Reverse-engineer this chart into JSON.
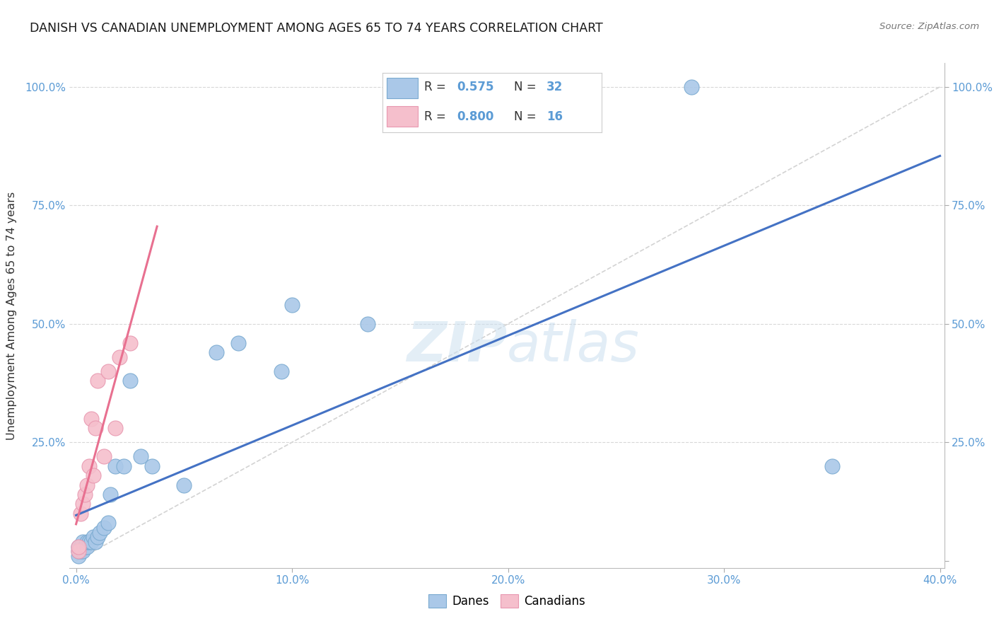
{
  "title": "DANISH VS CANADIAN UNEMPLOYMENT AMONG AGES 65 TO 74 YEARS CORRELATION CHART",
  "source": "Source: ZipAtlas.com",
  "ylabel_label": "Unemployment Among Ages 65 to 74 years",
  "xlim": [
    0.0,
    0.4
  ],
  "ylim": [
    0.0,
    1.05
  ],
  "xticks": [
    0.0,
    0.1,
    0.2,
    0.3,
    0.4
  ],
  "yticks": [
    0.0,
    0.25,
    0.5,
    0.75,
    1.0
  ],
  "xtick_labels": [
    "0.0%",
    "10.0%",
    "20.0%",
    "30.0%",
    "40.0%"
  ],
  "ytick_labels": [
    "",
    "25.0%",
    "50.0%",
    "75.0%",
    "100.0%"
  ],
  "danes_R": "0.575",
  "danes_N": "32",
  "canadians_R": "0.800",
  "canadians_N": "16",
  "danes_fill": "#aac8e8",
  "danes_edge": "#7aaad0",
  "canadians_fill": "#f5bfcc",
  "canadians_edge": "#e898b0",
  "danes_line": "#4472c4",
  "canadians_line": "#e87090",
  "diagonal_color": "#c8c8c8",
  "grid_color": "#d8d8d8",
  "tick_color": "#5b9bd5",
  "watermark": "ZIPatlas",
  "legend_label_danes": "Danes",
  "legend_label_canadians": "Canadians",
  "danes_x": [
    0.001,
    0.001,
    0.001,
    0.002,
    0.002,
    0.003,
    0.003,
    0.004,
    0.005,
    0.005,
    0.006,
    0.007,
    0.008,
    0.009,
    0.01,
    0.011,
    0.013,
    0.015,
    0.016,
    0.018,
    0.022,
    0.025,
    0.03,
    0.035,
    0.05,
    0.065,
    0.075,
    0.095,
    0.1,
    0.135,
    0.285,
    0.35
  ],
  "danes_y": [
    0.01,
    0.02,
    0.03,
    0.02,
    0.03,
    0.02,
    0.04,
    0.03,
    0.03,
    0.04,
    0.04,
    0.04,
    0.05,
    0.04,
    0.05,
    0.06,
    0.07,
    0.08,
    0.14,
    0.2,
    0.2,
    0.38,
    0.22,
    0.2,
    0.16,
    0.44,
    0.46,
    0.4,
    0.54,
    0.5,
    1.0,
    0.2
  ],
  "canadians_x": [
    0.001,
    0.001,
    0.002,
    0.003,
    0.004,
    0.005,
    0.006,
    0.007,
    0.008,
    0.009,
    0.01,
    0.013,
    0.015,
    0.018,
    0.02,
    0.025
  ],
  "canadians_y": [
    0.02,
    0.03,
    0.1,
    0.12,
    0.14,
    0.16,
    0.2,
    0.3,
    0.18,
    0.28,
    0.38,
    0.22,
    0.4,
    0.28,
    0.43,
    0.46
  ]
}
